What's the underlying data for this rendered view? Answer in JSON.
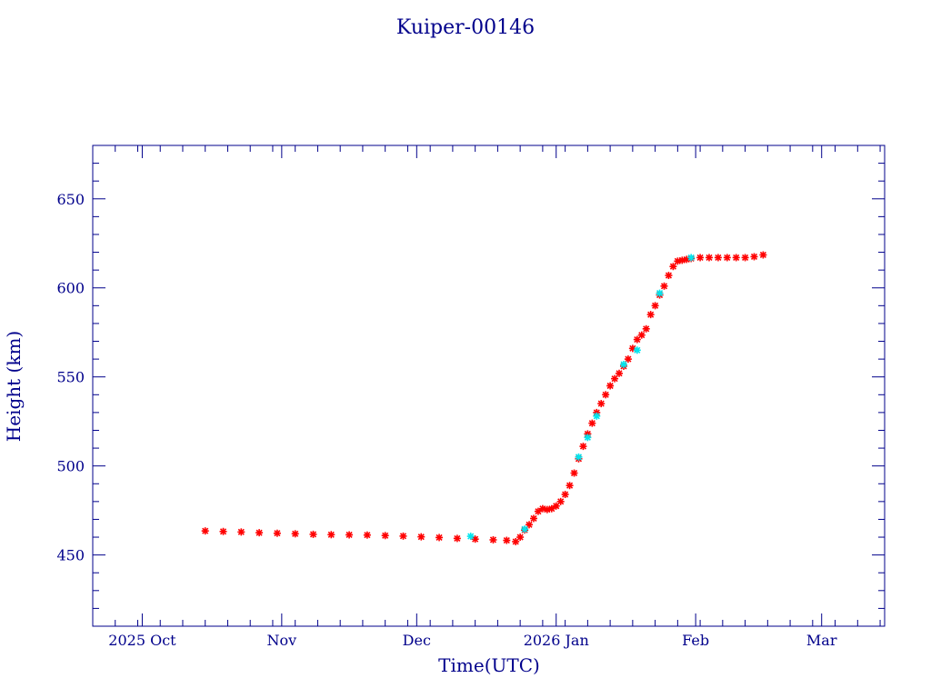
{
  "chart_data": {
    "type": "scatter",
    "title": "Kuiper-00146",
    "xlabel": "Time(UTC)",
    "ylabel": "Height (km)",
    "xlim": [
      "2025-09-20",
      "2026-03-15"
    ],
    "ylim": [
      410,
      680
    ],
    "x_ticks": [
      {
        "date": "2025-10-01",
        "label": "2025 Oct"
      },
      {
        "date": "2025-11-01",
        "label": "Nov"
      },
      {
        "date": "2025-12-01",
        "label": "Dec"
      },
      {
        "date": "2026-01-01",
        "label": "2026 Jan"
      },
      {
        "date": "2026-02-01",
        "label": "Feb"
      },
      {
        "date": "2026-03-01",
        "label": "Mar"
      }
    ],
    "y_ticks": [
      450,
      500,
      550,
      600,
      650
    ],
    "grid": false,
    "colors": {
      "axes": "#00008b",
      "series_primary": "#ff0000",
      "series_secondary": "#00e5ee"
    },
    "series": [
      {
        "color": "#ff0000",
        "marker": "star",
        "points": [
          [
            "2025-10-15",
            463.5
          ],
          [
            "2025-10-19",
            463.2
          ],
          [
            "2025-10-23",
            462.9
          ],
          [
            "2025-10-27",
            462.5
          ],
          [
            "2025-10-31",
            462.2
          ],
          [
            "2025-11-04",
            461.9
          ],
          [
            "2025-11-08",
            461.6
          ],
          [
            "2025-11-12",
            461.4
          ],
          [
            "2025-11-16",
            461.3
          ],
          [
            "2025-11-20",
            461.2
          ],
          [
            "2025-11-24",
            460.9
          ],
          [
            "2025-11-28",
            460.6
          ],
          [
            "2025-12-02",
            460.2
          ],
          [
            "2025-12-06",
            459.8
          ],
          [
            "2025-12-10",
            459.3
          ],
          [
            "2025-12-14",
            458.9
          ],
          [
            "2025-12-18",
            458.5
          ],
          [
            "2025-12-21",
            458.2
          ],
          [
            "2025-12-23",
            457.5
          ],
          [
            "2025-12-24",
            460.0
          ],
          [
            "2025-12-25",
            464.0
          ],
          [
            "2025-12-26",
            467.0
          ],
          [
            "2025-12-27",
            470.5
          ],
          [
            "2025-12-28",
            474.5
          ],
          [
            "2025-12-29",
            476.0
          ],
          [
            "2025-12-30",
            475.5
          ],
          [
            "2025-12-31",
            476.0
          ],
          [
            "2026-01-01",
            477.5
          ],
          [
            "2026-01-02",
            480.0
          ],
          [
            "2026-01-03",
            484.0
          ],
          [
            "2026-01-04",
            489.0
          ],
          [
            "2026-01-05",
            496.0
          ],
          [
            "2026-01-06",
            504.0
          ],
          [
            "2026-01-07",
            511.0
          ],
          [
            "2026-01-08",
            518.0
          ],
          [
            "2026-01-09",
            524.0
          ],
          [
            "2026-01-10",
            530.0
          ],
          [
            "2026-01-11",
            535.0
          ],
          [
            "2026-01-12",
            540.0
          ],
          [
            "2026-01-13",
            545.0
          ],
          [
            "2026-01-14",
            549.0
          ],
          [
            "2026-01-15",
            552.0
          ],
          [
            "2026-01-16",
            556.0
          ],
          [
            "2026-01-17",
            560.0
          ],
          [
            "2026-01-18",
            566.0
          ],
          [
            "2026-01-19",
            571.0
          ],
          [
            "2026-01-20",
            573.5
          ],
          [
            "2026-01-21",
            577.0
          ],
          [
            "2026-01-22",
            585.0
          ],
          [
            "2026-01-23",
            590.0
          ],
          [
            "2026-01-24",
            596.0
          ],
          [
            "2026-01-25",
            601.0
          ],
          [
            "2026-01-26",
            607.0
          ],
          [
            "2026-01-27",
            612.0
          ],
          [
            "2026-01-28",
            615.0
          ],
          [
            "2026-01-29",
            615.5
          ],
          [
            "2026-01-30",
            616.0
          ],
          [
            "2026-01-31",
            616.5
          ],
          [
            "2026-02-02",
            617.0
          ],
          [
            "2026-02-04",
            617.0
          ],
          [
            "2026-02-06",
            617.0
          ],
          [
            "2026-02-08",
            617.0
          ],
          [
            "2026-02-10",
            617.0
          ],
          [
            "2026-02-12",
            617.0
          ],
          [
            "2026-02-14",
            617.5
          ],
          [
            "2026-02-16",
            618.5
          ]
        ]
      },
      {
        "color": "#00e5ee",
        "marker": "star",
        "points": [
          [
            "2025-12-13",
            460.5
          ],
          [
            "2025-12-25",
            464.5
          ],
          [
            "2026-01-06",
            505.0
          ],
          [
            "2026-01-08",
            516.0
          ],
          [
            "2026-01-10",
            528.0
          ],
          [
            "2026-01-16",
            557.0
          ],
          [
            "2026-01-19",
            565.0
          ],
          [
            "2026-01-24",
            597.0
          ],
          [
            "2026-01-31",
            617.0
          ]
        ]
      }
    ]
  }
}
